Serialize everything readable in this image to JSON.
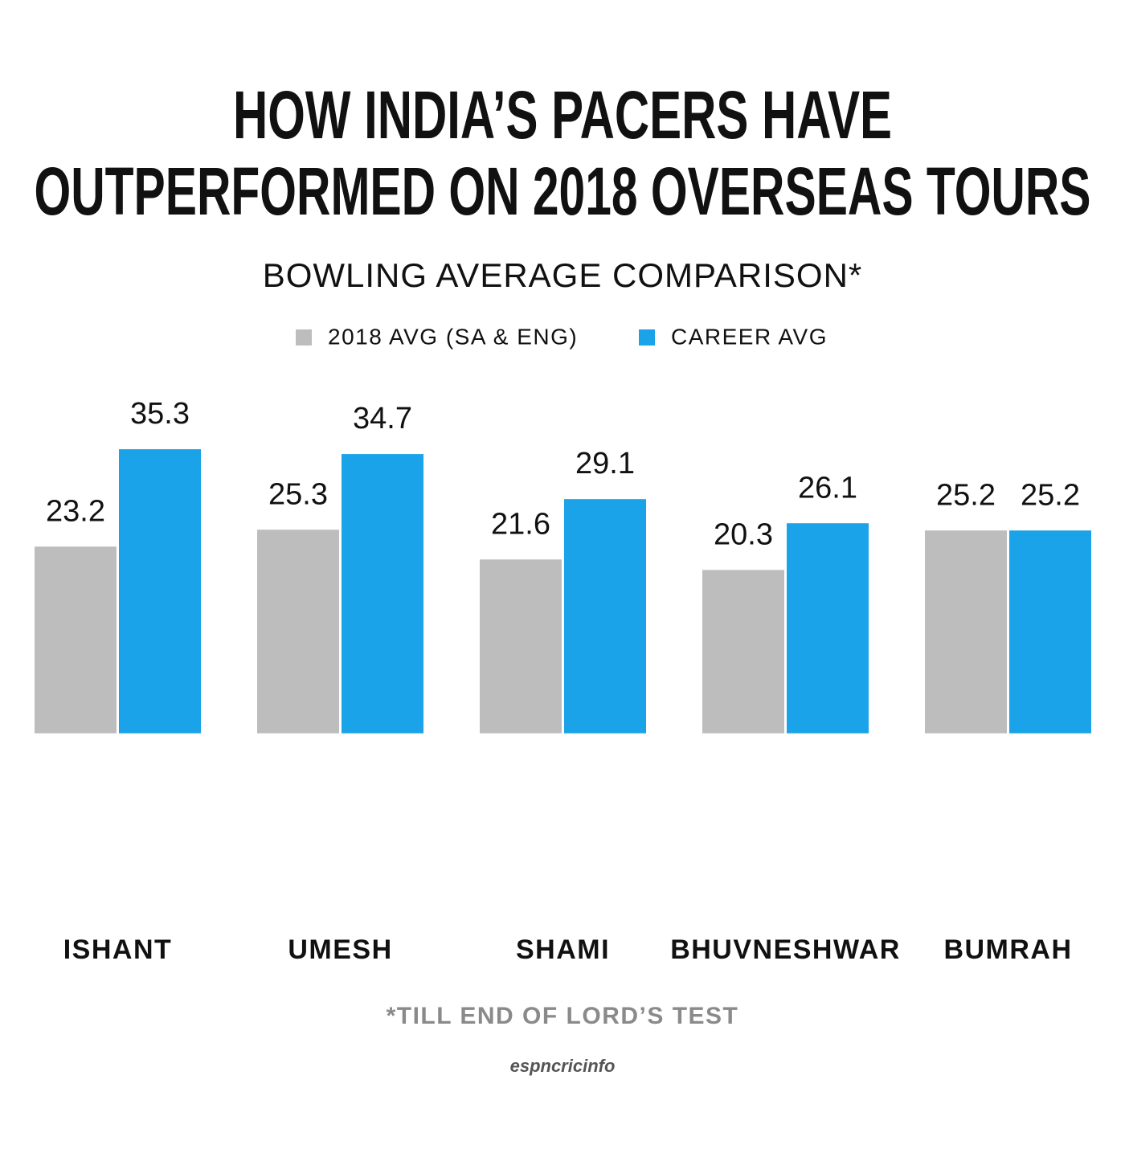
{
  "chart_data": {
    "type": "bar",
    "title_lines": [
      "HOW INDIA’S PACERS HAVE",
      "OUTPERFORMED ON 2018 OVERSEAS TOURS"
    ],
    "subtitle": "BOWLING AVERAGE COMPARISON*",
    "categories": [
      "ISHANT",
      "UMESH",
      "SHAMI",
      "BHUVNESHWAR",
      "BUMRAH"
    ],
    "series": [
      {
        "name": "2018 AVG (SA & ENG)",
        "color": "#bdbdbd",
        "values": [
          23.2,
          25.3,
          21.6,
          20.3,
          25.2
        ]
      },
      {
        "name": "CAREER AVG",
        "color": "#1aa3e8",
        "values": [
          35.3,
          34.7,
          29.1,
          26.1,
          25.2
        ]
      }
    ],
    "ylim": [
      -22.5,
      40
    ],
    "legend": "top",
    "footnote": "*TILL END OF LORD’S TEST",
    "source": "espncricinfo"
  }
}
